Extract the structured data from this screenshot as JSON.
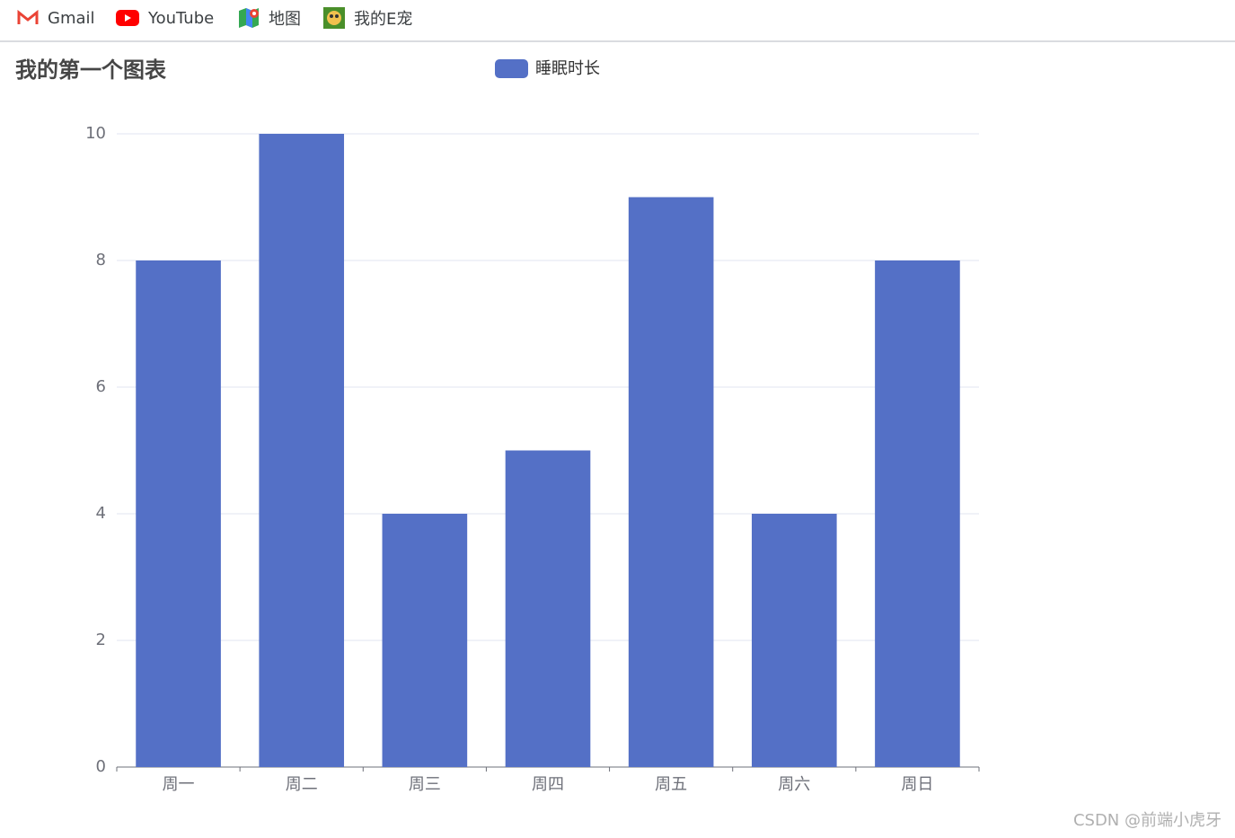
{
  "bookmarks": [
    "Gmail",
    "YouTube",
    "地图",
    "我的E宠"
  ],
  "chart_data": {
    "type": "bar",
    "title": "我的第一个图表",
    "categories": [
      "周一",
      "周二",
      "周三",
      "周四",
      "周五",
      "周六",
      "周日"
    ],
    "series": [
      {
        "name": "睡眠时长",
        "color": "#5470c6",
        "values": [
          8,
          10,
          4,
          5,
          9,
          4,
          8
        ]
      }
    ],
    "ylim": [
      0,
      10
    ],
    "yticks": [
      0,
      2,
      4,
      6,
      8,
      10
    ],
    "grid": true,
    "legend": "top"
  },
  "watermark": "CSDN @前端小虎牙"
}
